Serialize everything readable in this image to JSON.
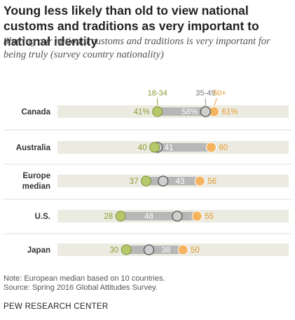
{
  "title": "Young less likely than old to view national customs and traditions as very important to national identity",
  "subtitle": "Sharing our national customs and traditions is very important for being truly (survey country nationality)",
  "note": "Note: European median based on 10 countries.",
  "source": "Source: Spring 2016 Global Attitudes Survey.",
  "organization": "PEW RESEARCH CENTER",
  "colors": {
    "young": "#b5c96a",
    "young_text": "#8a9a2e",
    "middle": "#cfcfcf",
    "old": "#f6b35f",
    "old_text": "#e39a2e",
    "band": "#ecebe2",
    "connector": "#b7b7b7"
  },
  "chart_data": {
    "type": "dot",
    "categories": [
      [
        "Canada"
      ],
      [
        "Australia"
      ],
      [
        "Europe",
        "median"
      ],
      [
        "U.S."
      ],
      [
        "Japan"
      ]
    ],
    "series": [
      {
        "name": "18-34",
        "values": [
          41,
          40,
          37,
          28,
          30
        ]
      },
      {
        "name": "35-49",
        "values": [
          58,
          41,
          43,
          48,
          38
        ]
      },
      {
        "name": "50+",
        "values": [
          61,
          60,
          56,
          55,
          50
        ]
      }
    ],
    "value_labels": [
      [
        "41%",
        "58%",
        "61%"
      ],
      [
        "40",
        "41",
        "60"
      ],
      [
        "37",
        "43",
        "56"
      ],
      [
        "28",
        "48",
        "55"
      ],
      [
        "30",
        "38",
        "50"
      ]
    ],
    "legend_placement": "top, above first row"
  }
}
